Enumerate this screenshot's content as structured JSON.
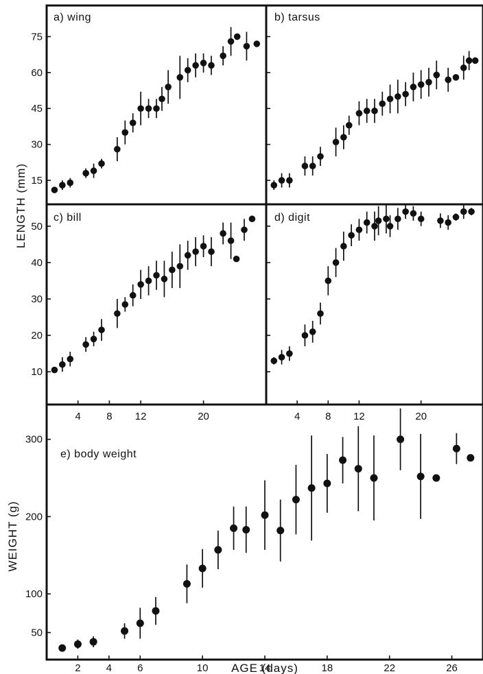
{
  "chart_data": [
    {
      "id": "wing",
      "type": "scatter",
      "panel_label": "a) wing",
      "ylabel": "LENGTH (mm)",
      "yticks": [
        15,
        30,
        45,
        60,
        75
      ],
      "ylim": [
        5,
        88
      ],
      "xlim": [
        0,
        28
      ],
      "x": [
        1,
        2,
        3,
        5,
        6,
        7,
        9,
        10,
        11,
        12,
        13,
        14,
        14.7,
        15.5,
        17,
        18,
        19,
        20,
        21,
        22.5,
        23.5,
        24.3,
        25.5,
        26.8
      ],
      "y": [
        11,
        13,
        14,
        18,
        19,
        22,
        28,
        35,
        39,
        45,
        45,
        45,
        49,
        54,
        58,
        61,
        63,
        64,
        63,
        67,
        73,
        75,
        71,
        72
      ],
      "err": [
        1,
        2,
        2,
        2,
        3,
        2,
        5,
        5,
        4,
        7,
        4,
        4,
        5,
        7,
        9,
        5,
        5,
        4,
        4,
        4,
        6,
        1,
        6,
        0
      ]
    },
    {
      "id": "tarsus",
      "type": "scatter",
      "panel_label": "b) tarsus",
      "ylabel": "LENGTH (mm)",
      "yticks": [
        15,
        30,
        45,
        60,
        75
      ],
      "ylim": [
        5,
        88
      ],
      "xlim": [
        0,
        28
      ],
      "x": [
        1,
        2,
        3,
        5,
        6,
        7,
        9,
        10,
        10.7,
        12,
        13,
        14,
        15,
        16,
        17,
        18,
        19,
        20,
        21,
        22,
        23.5,
        24.5,
        25.5,
        26.2,
        27
      ],
      "y": [
        13,
        15,
        15,
        21,
        21,
        25,
        31,
        33,
        38,
        43,
        44,
        44,
        47,
        49,
        50,
        51,
        54,
        55,
        56,
        59,
        57,
        58,
        62,
        65,
        65
      ],
      "err": [
        2,
        3,
        3,
        4,
        4,
        4,
        6,
        5,
        4,
        5,
        5,
        5,
        5,
        6,
        7,
        5,
        6,
        6,
        6,
        6,
        5,
        1,
        5,
        4,
        1
      ]
    },
    {
      "id": "bill",
      "type": "scatter",
      "panel_label": "c) bill",
      "ylabel": "LENGTH (mm)",
      "yticks": [
        10,
        20,
        30,
        40,
        50
      ],
      "ylim": [
        1,
        56
      ],
      "xlim": [
        0,
        28
      ],
      "x": [
        1,
        2,
        3,
        5,
        6,
        7,
        9,
        10,
        11,
        12,
        13,
        14,
        15,
        16,
        17,
        18,
        19,
        20,
        21,
        22.5,
        23.5,
        24.2,
        25.2,
        26.2
      ],
      "y": [
        10.5,
        12,
        13.5,
        17.5,
        19,
        21.5,
        26,
        28.5,
        31,
        34,
        35,
        36.5,
        35.5,
        38,
        39,
        42,
        43,
        44.5,
        43,
        48,
        46,
        41,
        49,
        52
      ],
      "err": [
        0.5,
        2,
        2,
        2,
        2,
        3,
        4,
        2,
        3,
        4,
        4,
        4,
        5,
        5,
        6,
        4,
        4,
        3,
        4,
        3,
        5,
        0,
        3,
        0
      ]
    },
    {
      "id": "digit",
      "type": "scatter",
      "panel_label": "d) digit",
      "ylabel": "LENGTH (mm)",
      "yticks": [
        10,
        20,
        30,
        40,
        50
      ],
      "ylim": [
        1,
        56
      ],
      "xlim": [
        0,
        28
      ],
      "x": [
        1,
        2,
        3,
        5,
        6,
        7,
        8,
        9,
        10,
        11,
        12,
        13,
        14,
        14.5,
        15.5,
        16,
        17,
        18,
        19,
        20,
        22.5,
        23.5,
        24.5,
        25.5,
        26.5
      ],
      "y": [
        13,
        14,
        15,
        20,
        21,
        26,
        35,
        40,
        44.5,
        47.5,
        49,
        51,
        50,
        51.5,
        52,
        50,
        52,
        54,
        53.5,
        52,
        51.5,
        51,
        52.5,
        54,
        54
      ],
      "err": [
        1,
        2,
        2,
        3,
        3,
        3,
        4,
        4,
        4,
        3,
        3,
        3,
        4,
        4,
        4,
        3,
        3,
        2,
        2,
        2,
        2,
        2,
        1,
        2,
        1
      ]
    },
    {
      "id": "body-weight",
      "type": "scatter",
      "panel_label": "e) body weight",
      "ylabel": "WEIGHT (g)",
      "xlabel": "AGE (days)",
      "yticks": [
        50,
        100,
        200,
        300
      ],
      "ylim": [
        15,
        345
      ],
      "xlim": [
        0,
        28
      ],
      "xticks": [
        2,
        4,
        6,
        10,
        14,
        18,
        22,
        26
      ],
      "x": [
        1,
        2,
        3,
        5,
        6,
        7,
        9,
        10,
        11,
        12,
        12.8,
        14,
        15,
        16,
        17,
        18,
        19,
        20,
        21,
        22.7,
        24,
        25,
        26.3,
        27.2
      ],
      "y": [
        30,
        35,
        38,
        52,
        62,
        78,
        113,
        133,
        157,
        185,
        183,
        202,
        182,
        222,
        237,
        243,
        273,
        262,
        250,
        300,
        252,
        250,
        288,
        276
      ],
      "err": [
        3,
        6,
        7,
        10,
        20,
        18,
        25,
        25,
        25,
        28,
        30,
        45,
        40,
        45,
        68,
        38,
        30,
        55,
        55,
        40,
        55,
        3,
        20,
        3
      ]
    }
  ],
  "shared": {
    "mid_axis_ticks": [
      4,
      8,
      12,
      20
    ]
  }
}
